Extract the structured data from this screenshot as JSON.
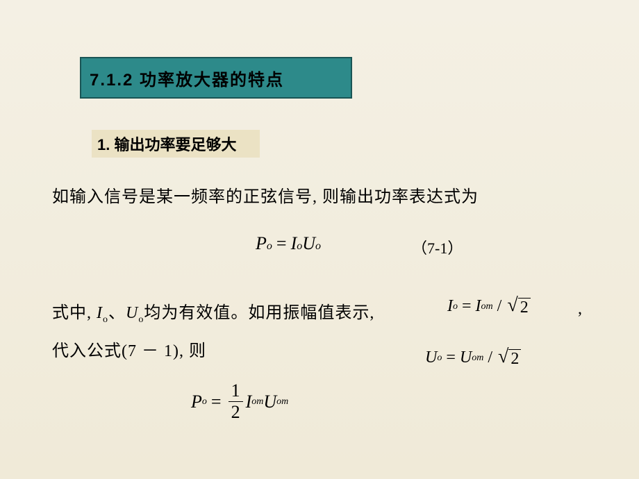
{
  "title": "7.1.2  功率放大器的特点",
  "subtitle": "1. 输出功率要足够大",
  "paragraph1": "如输入信号是某一频率的正弦信号, 则输出功率表达式为",
  "formula1": {
    "P": "P",
    "Psub": "o",
    "eq": "=",
    "I": "I",
    "Isub": "o",
    "U": "U",
    "Usub": "o"
  },
  "eqNum1": "（7-1）",
  "paragraph2a_prefix": "式中, ",
  "paragraph2a_I": "I",
  "paragraph2a_Isub": "o",
  "paragraph2a_sep": "、",
  "paragraph2a_U": "U",
  "paragraph2a_Usub": "o",
  "paragraph2a_suffix": "均为有效值。如用振幅值表示,",
  "formula2": {
    "I": "I",
    "Isub": "o",
    "eq": "=",
    "I2": "I",
    "I2sub": "om",
    "slash": " / ",
    "sqrt": "2"
  },
  "comma_after": ",",
  "paragraph2b": "代入公式(7 － 1), 则",
  "formula3": {
    "U": "U",
    "Usub": "o",
    "eq": "=",
    "U2": "U",
    "U2sub": "om",
    "slash": " / ",
    "sqrt": "2"
  },
  "formula4": {
    "P": "P",
    "Psub": "o",
    "eq": "=",
    "num": "1",
    "den": "2",
    "I": "I",
    "Isub": "om",
    "U": "U",
    "Usub": "om"
  },
  "colors": {
    "banner_bg": "#2d8a8a",
    "banner_border": "#1a5555",
    "subtitle_bg": "#ebe2c4",
    "page_bg_top": "#f4f0e4",
    "page_bg_bottom": "#f0ead8",
    "text": "#000000"
  }
}
